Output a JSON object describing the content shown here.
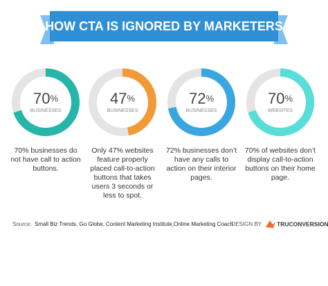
{
  "title": "HOW CTA IS IGNORED BY MARKETERS",
  "chart_data": [
    {
      "type": "donut",
      "values": [
        70
      ],
      "value_labels": [
        "70%"
      ],
      "subtitle": "BUSINESSES",
      "color": "#26b5a8",
      "track_color": "#e4e4e4",
      "caption": "70% businesses do not have call to action buttons."
    },
    {
      "type": "donut",
      "values": [
        47
      ],
      "value_labels": [
        "47%"
      ],
      "subtitle": "BUSINESSES",
      "color": "#f29a38",
      "track_color": "#e4e4e4",
      "caption": "Only 47% websites feature properly placed call-to-action buttons that takes users 3 seconds or less to spot."
    },
    {
      "type": "donut",
      "values": [
        72
      ],
      "value_labels": [
        "72%"
      ],
      "subtitle": "BUSINESSES",
      "color": "#3aa6e0",
      "track_color": "#e4e4e4",
      "caption": "72% businesses don’t have any calls to action on their interior pages."
    },
    {
      "type": "donut",
      "values": [
        70
      ],
      "value_labels": [
        "70%"
      ],
      "subtitle": "WEBSITES",
      "color": "#58ddd9",
      "track_color": "#e4e4e4",
      "caption": "70% of websites don’t display call-to-action buttons on their home page."
    }
  ],
  "source_label": "Source:",
  "source": "Small Biz Trends, Go Globe, Content Marketing Institute,Online Marketing Coach",
  "credit_label": "DESIGN BY",
  "credit_name": "TRUCONVERSION"
}
